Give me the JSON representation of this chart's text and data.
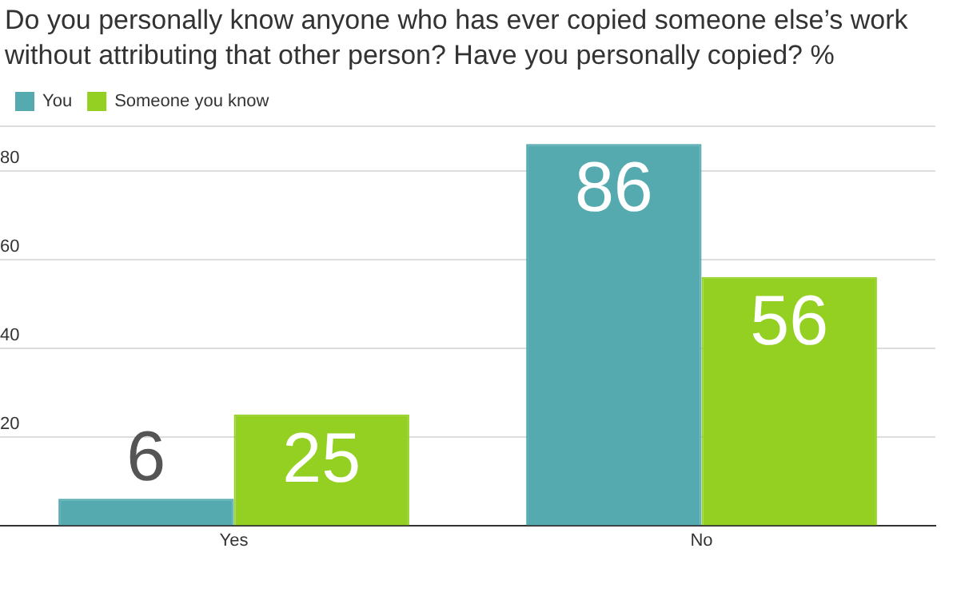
{
  "chart_data": {
    "type": "bar",
    "title": "Do you personally know anyone who has ever copied someone else’s work without attributing that other person? Have you personally copied? %",
    "categories": [
      "Yes",
      "No"
    ],
    "series": [
      {
        "name": "You",
        "color": "#55aab0",
        "values": [
          6,
          86
        ]
      },
      {
        "name": "Someone you know",
        "color": "#93d022",
        "values": [
          25,
          56
        ]
      }
    ],
    "ylim": [
      0,
      90
    ],
    "yticks": [
      20,
      40,
      60,
      80,
      {
        "value": 90,
        "label": null
      }
    ],
    "grid": "y",
    "legend": "top left",
    "data_labels": true
  }
}
